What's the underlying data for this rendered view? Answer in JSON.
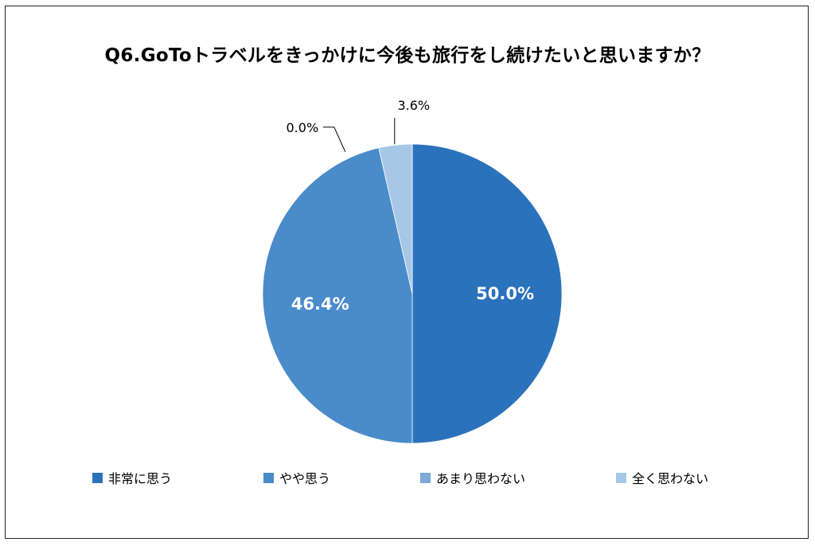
{
  "chart_data": {
    "type": "pie",
    "title": "Q6.GoToトラベルをきっかけに今後も旅行をし続けたいと思いますか？",
    "slices": [
      {
        "label": "非常に思う",
        "value": 50.0,
        "display": "50.0%",
        "color": "#2B72BD"
      },
      {
        "label": "やや思う",
        "value": 46.4,
        "display": "46.4%",
        "color": "#4A8BCA"
      },
      {
        "label": "あまり思わない",
        "value": 0.0,
        "display": "0.0%",
        "color": "#7BAAD8"
      },
      {
        "label": "全く思わない",
        "value": 3.6,
        "display": "3.6%",
        "color": "#A7C7E6"
      }
    ],
    "start": "12 o'clock",
    "direction": "clockwise",
    "legend_position": "bottom"
  }
}
